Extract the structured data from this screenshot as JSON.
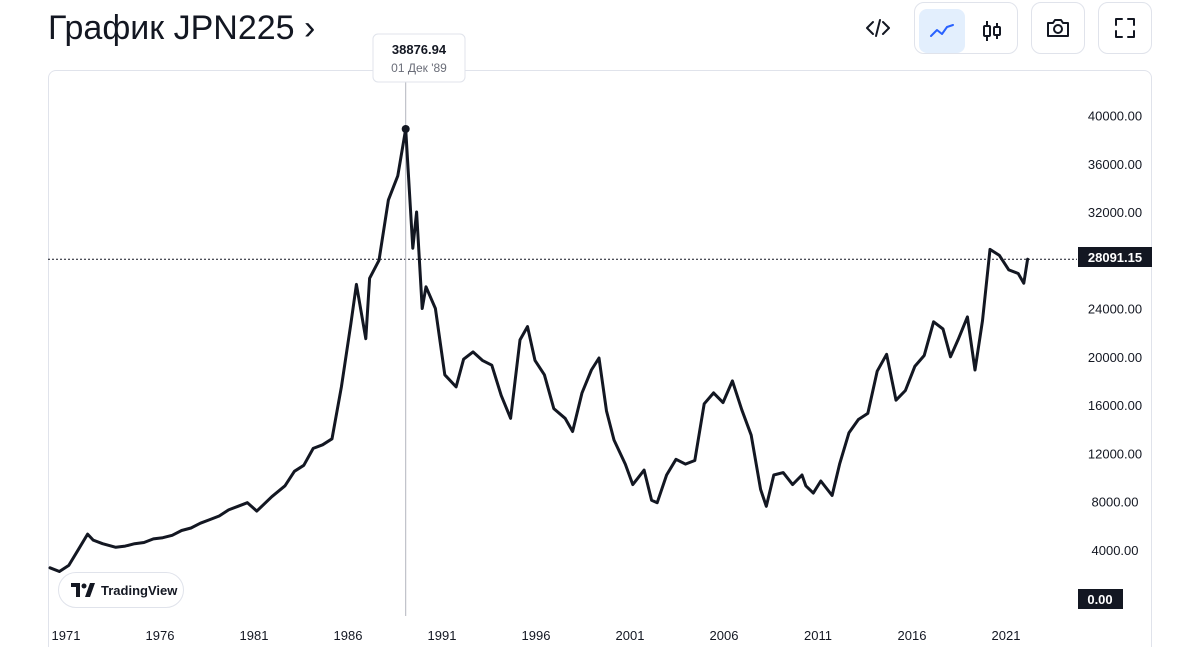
{
  "header": {
    "title": "График JPN225 ›"
  },
  "toolbar": {
    "embed_icon": "code-icon",
    "line_icon": "line-chart-icon",
    "candle_icon": "candlestick-icon",
    "snapshot_icon": "camera-icon",
    "fullscreen_icon": "fullscreen-icon",
    "active_style": "line"
  },
  "tooltip": {
    "value": "38876.94",
    "date": "01 Дек '89"
  },
  "current_price_label": "28091.15",
  "zero_label": "0.00",
  "watermark": {
    "label": "TradingView"
  },
  "colors": {
    "line": "#131722",
    "accent": "#2962ff",
    "active_bg": "#e3effd",
    "grid_border": "#e0e3eb"
  },
  "chart_data": {
    "type": "line",
    "title": "",
    "xlabel": "",
    "ylabel": "",
    "ylim": [
      0,
      44000
    ],
    "xlim": [
      1971,
      2026.5
    ],
    "x_ticks": [
      "1971",
      "1976",
      "1981",
      "1986",
      "1991",
      "1996",
      "2001",
      "2006",
      "2011",
      "2016",
      "2021"
    ],
    "y_ticks": [
      "4000.00",
      "8000.00",
      "12000.00",
      "16000.00",
      "20000.00",
      "24000.00",
      "28000.00",
      "32000.00",
      "36000.00",
      "40000.00"
    ],
    "grid": false,
    "crosshair": {
      "x": 1989.92,
      "y": 38876.94
    },
    "current_value": 28091.15,
    "series": [
      {
        "x": [
          1971.0,
          1971.5,
          1972.0,
          1972.5,
          1973.0,
          1973.3,
          1973.8,
          1974.5,
          1975.0,
          1975.5,
          1976.0,
          1976.5,
          1977.0,
          1977.5,
          1978.0,
          1978.5,
          1979.0,
          1979.5,
          1980.0,
          1980.5,
          1981.0,
          1981.5,
          1982.0,
          1982.8,
          1983.5,
          1984.0,
          1984.5,
          1985.0,
          1985.5,
          1986.0,
          1986.5,
          1987.0,
          1987.3,
          1987.8,
          1988.0,
          1988.5,
          1989.0,
          1989.5,
          1989.92,
          1990.3,
          1990.5,
          1990.8,
          1991.0,
          1991.5,
          1992.0,
          1992.6,
          1993.0,
          1993.5,
          1994.0,
          1994.5,
          1995.0,
          1995.5,
          1996.0,
          1996.4,
          1996.8,
          1997.3,
          1997.8,
          1998.4,
          1998.8,
          1999.3,
          1999.8,
          2000.2,
          2000.6,
          2001.0,
          2001.6,
          2002.0,
          2002.6,
          2003.0,
          2003.3,
          2003.8,
          2004.3,
          2004.8,
          2005.3,
          2005.8,
          2006.3,
          2006.8,
          2007.3,
          2007.8,
          2008.3,
          2008.8,
          2009.1,
          2009.5,
          2010.0,
          2010.5,
          2011.0,
          2011.2,
          2011.6,
          2012.0,
          2012.6,
          2013.0,
          2013.5,
          2014.0,
          2014.5,
          2015.0,
          2015.5,
          2016.0,
          2016.5,
          2017.0,
          2017.5,
          2018.0,
          2018.5,
          2018.9,
          2019.3,
          2019.8,
          2020.2,
          2020.6,
          2021.0,
          2021.5,
          2022.0,
          2022.5,
          2022.8,
          2023.0
        ],
        "y": [
          2500,
          2200,
          2700,
          4000,
          5300,
          4800,
          4500,
          4200,
          4300,
          4500,
          4600,
          4900,
          5000,
          5200,
          5600,
          5800,
          6200,
          6500,
          6800,
          7300,
          7600,
          7900,
          7200,
          8400,
          9300,
          10500,
          11000,
          12400,
          12700,
          13200,
          17500,
          22700,
          26000,
          21500,
          26500,
          28000,
          33000,
          35000,
          38876.94,
          29000,
          32000,
          24000,
          25800,
          24000,
          18500,
          17500,
          19800,
          20400,
          19700,
          19300,
          16800,
          14900,
          21400,
          22500,
          19700,
          18500,
          15700,
          14900,
          13800,
          17000,
          18900,
          19900,
          15500,
          13100,
          11100,
          9400,
          10600,
          8100,
          7900,
          10200,
          11500,
          11100,
          11400,
          16100,
          17000,
          16200,
          18000,
          15600,
          13500,
          9000,
          7600,
          10200,
          10400,
          9400,
          10200,
          9300,
          8700,
          9700,
          8500,
          11100,
          13700,
          14800,
          15300,
          18800,
          20200,
          16400,
          17200,
          19200,
          20100,
          22900,
          22300,
          20000,
          21400,
          23300,
          18900,
          23000,
          28900,
          28400,
          27200,
          26900,
          26100,
          28091.15
        ]
      }
    ]
  }
}
